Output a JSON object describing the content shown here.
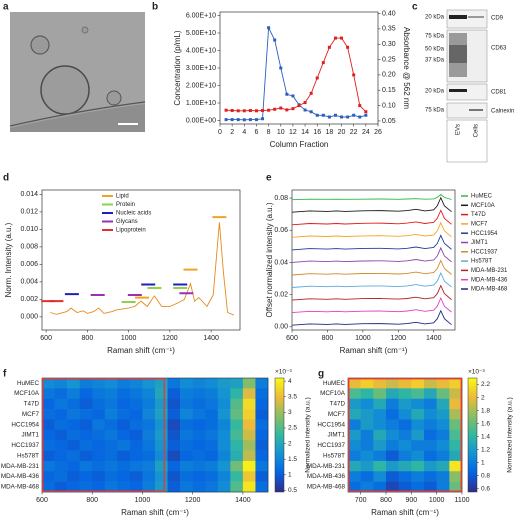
{
  "panel_labels": [
    "a",
    "b",
    "c",
    "d",
    "e",
    "f",
    "g"
  ],
  "blot": {
    "rows": [
      {
        "name": "CD9",
        "markers": [
          "20 kDa"
        ]
      },
      {
        "name": "CD63",
        "markers": [
          "75 kDa",
          "50 kDa",
          "37 kDa"
        ]
      },
      {
        "name": "CD81",
        "markers": [
          "20 kDa"
        ]
      },
      {
        "name": "Calnexin",
        "markers": [
          "75 kDa"
        ]
      }
    ],
    "lanes": [
      "EVs",
      "Cells"
    ]
  },
  "chart_data": [
    {
      "type": "line",
      "xlabel": "Column Fraction",
      "ylabel": "Concentration (p/mL)",
      "y2label": "Absorbance @ 562 nm",
      "markers": true,
      "x": [
        1,
        2,
        3,
        4,
        5,
        6,
        7,
        8,
        9,
        10,
        11,
        12,
        13,
        14,
        15,
        16,
        17,
        18,
        19,
        20,
        21,
        22,
        23,
        24
      ],
      "xlim": [
        0,
        26
      ],
      "xticks": [
        0,
        2,
        4,
        6,
        8,
        10,
        12,
        14,
        16,
        18,
        20,
        22,
        24,
        26
      ],
      "ylim": [
        -2000000000,
        62000000000
      ],
      "yticks": [
        {
          "value": 0,
          "label": "0.00E+00"
        },
        {
          "value": 10000000000,
          "label": "1.00E+10"
        },
        {
          "value": 20000000000,
          "label": "2.00E+10"
        },
        {
          "value": 30000000000,
          "label": "3.00E+10"
        },
        {
          "value": 40000000000,
          "label": "4.00E+10"
        },
        {
          "value": 50000000000,
          "label": "5.00E+10"
        },
        {
          "value": 60000000000,
          "label": "6.00E+10"
        }
      ],
      "y2lim": [
        0.04,
        0.405
      ],
      "y2ticks": [
        0.05,
        {
          "value": 0.1,
          "label": "0.10"
        },
        0.15,
        {
          "value": 0.2,
          "label": "0.20"
        },
        0.25,
        {
          "value": 0.3,
          "label": "0.30"
        },
        0.35,
        {
          "value": 0.4,
          "label": "0.40"
        }
      ],
      "series": [
        {
          "color": "#2d5fbf",
          "values": [
            500000000,
            500000000,
            500000000,
            400000000,
            500000000,
            500000000,
            1000000000,
            53000000000,
            46000000000,
            30000000000,
            15000000000,
            14000000000,
            9000000000,
            6000000000,
            5000000000,
            3000000000,
            3000000000,
            2000000000,
            3000000000,
            2000000000,
            2000000000,
            3000000000,
            2000000000,
            3000000000
          ]
        },
        {
          "color": "#e02020",
          "axis": "y2",
          "values": [
            0.085,
            0.084,
            0.083,
            0.083,
            0.084,
            0.083,
            0.084,
            0.085,
            0.088,
            0.092,
            0.086,
            0.09,
            0.1,
            0.11,
            0.14,
            0.19,
            0.24,
            0.29,
            0.32,
            0.32,
            0.29,
            0.2,
            0.1,
            0.08
          ]
        }
      ]
    },
    {
      "type": "line",
      "xlabel": "Raman shift (cm⁻¹)",
      "ylabel": "Norm. Intensity (a.u.)",
      "legend": "upper-left",
      "x": [
        620,
        650,
        700,
        720,
        750,
        780,
        800,
        830,
        855,
        880,
        920,
        940,
        1000,
        1030,
        1060,
        1090,
        1125,
        1160,
        1200,
        1240,
        1270,
        1300,
        1320,
        1340,
        1380,
        1410,
        1440,
        1460,
        1480,
        1510
      ],
      "xlim": [
        580,
        1540
      ],
      "xticks": [
        600,
        800,
        1000,
        1200,
        1400
      ],
      "ylim": [
        -0.0015,
        0.0145
      ],
      "yticks": [
        {
          "value": 0,
          "label": "0.000"
        },
        0.002,
        0.004,
        0.006,
        0.008,
        {
          "value": 0.01,
          "label": "0.010"
        },
        0.012,
        0.014
      ],
      "series": [
        {
          "color": "#e8891e",
          "values": [
            0.0005,
            0.0003,
            0.0006,
            0.001,
            0.0005,
            0.0007,
            0.0004,
            0.0006,
            0.001,
            0.0004,
            0.0006,
            0.0008,
            0.001,
            0.0012,
            0.0018,
            0.0012,
            0.0024,
            0.0012,
            0.0012,
            0.0016,
            0.002,
            0.0038,
            0.0018,
            0.0022,
            0.0012,
            0.0025,
            0.0108,
            0.005,
            0.0005,
            0.0002
          ]
        }
      ],
      "assignments": [
        {
          "name": "Lipid",
          "color": "#f2a324",
          "x": [
            1065,
            1300,
            1440
          ],
          "values": [
            0.0022,
            0.0054,
            0.0114
          ]
        },
        {
          "name": "Protein",
          "color": "#8fd14f",
          "x": [
            1000,
            1125,
            1250
          ],
          "values": [
            0.0017,
            0.0033,
            0.0033
          ]
        },
        {
          "name": "Nucleic acids",
          "color": "#1f1fbf",
          "x": [
            725,
            1095,
            1250
          ],
          "values": [
            0.0026,
            0.0037,
            0.0037
          ]
        },
        {
          "name": "Glycans",
          "color": "#9b30b0",
          "x": [
            850,
            1030,
            1280
          ],
          "values": [
            0.0025,
            0.0025,
            0.0027
          ]
        },
        {
          "name": "Lipoprotein",
          "color": "#e03030",
          "x": [
            610,
            650
          ],
          "values": [
            0.0018,
            0.0018
          ]
        }
      ]
    },
    {
      "type": "line",
      "xlabel": "Raman shift (cm⁻¹)",
      "ylabel": "Offset normalized intensity (a.u.)",
      "legend": "right",
      "x": [
        600,
        700,
        800,
        850,
        900,
        1000,
        1100,
        1200,
        1250,
        1300,
        1350,
        1400,
        1420,
        1440,
        1460,
        1500
      ],
      "xlim": [
        600,
        1520
      ],
      "xticks": [
        600,
        800,
        1000,
        1200,
        1400
      ],
      "ylim": [
        -0.002,
        0.085
      ],
      "yticks": [
        {
          "value": 0,
          "label": "0.00"
        },
        0.02,
        0.04,
        0.06,
        0.08
      ],
      "series": [
        {
          "name": "HuMEC",
          "color": "#2db84a",
          "values": [
            0.079,
            0.0793,
            0.0792,
            0.0793,
            0.0792,
            0.0793,
            0.0794,
            0.0792,
            0.0794,
            0.0796,
            0.0793,
            0.0795,
            0.0804,
            0.0822,
            0.0804,
            0.0791
          ]
        },
        {
          "name": "MCF10A",
          "color": "#1a1a1a",
          "values": [
            0.0712,
            0.072,
            0.0717,
            0.072,
            0.0717,
            0.0721,
            0.0722,
            0.0718,
            0.0722,
            0.073,
            0.072,
            0.0727,
            0.0752,
            0.0802,
            0.0752,
            0.0715
          ]
        },
        {
          "name": "T47D",
          "color": "#e31a1c",
          "values": [
            0.0634,
            0.0642,
            0.0639,
            0.0642,
            0.0639,
            0.0643,
            0.0644,
            0.064,
            0.0644,
            0.0652,
            0.0642,
            0.0649,
            0.0674,
            0.0724,
            0.0674,
            0.0637
          ]
        },
        {
          "name": "MCF7",
          "color": "#f5a623",
          "values": [
            0.0556,
            0.0564,
            0.0561,
            0.0564,
            0.0561,
            0.0565,
            0.0566,
            0.0562,
            0.0566,
            0.0574,
            0.0564,
            0.0571,
            0.0596,
            0.0646,
            0.0596,
            0.0559
          ]
        },
        {
          "name": "HCC1954",
          "color": "#1f3d99",
          "values": [
            0.0478,
            0.0486,
            0.0483,
            0.0486,
            0.0483,
            0.0487,
            0.0488,
            0.0484,
            0.0488,
            0.0496,
            0.0486,
            0.0493,
            0.0518,
            0.0568,
            0.0518,
            0.0481
          ]
        },
        {
          "name": "JIMT1",
          "color": "#8e44ad",
          "values": [
            0.04,
            0.0408,
            0.0405,
            0.0408,
            0.0405,
            0.0409,
            0.041,
            0.0406,
            0.041,
            0.0418,
            0.0408,
            0.0415,
            0.044,
            0.049,
            0.044,
            0.0403
          ]
        },
        {
          "name": "HCC1937",
          "color": "#d08a2a",
          "values": [
            0.0322,
            0.033,
            0.0327,
            0.033,
            0.0327,
            0.0331,
            0.0332,
            0.0328,
            0.0332,
            0.034,
            0.033,
            0.0337,
            0.0362,
            0.0412,
            0.0362,
            0.0325
          ]
        },
        {
          "name": "Hs578T",
          "color": "#5fa8d8",
          "values": [
            0.0244,
            0.0252,
            0.0249,
            0.0252,
            0.0249,
            0.0253,
            0.0254,
            0.025,
            0.0254,
            0.0262,
            0.0252,
            0.0259,
            0.0284,
            0.0334,
            0.0284,
            0.0247
          ]
        },
        {
          "name": "MDA-MB-231",
          "color": "#b22222",
          "values": [
            0.0166,
            0.0174,
            0.0171,
            0.0174,
            0.0171,
            0.0175,
            0.0176,
            0.0172,
            0.0176,
            0.0184,
            0.0174,
            0.0181,
            0.0206,
            0.0256,
            0.0206,
            0.0169
          ]
        },
        {
          "name": "MDA-MB-436",
          "color": "#e040c0",
          "values": [
            0.0088,
            0.0096,
            0.0093,
            0.0096,
            0.0093,
            0.0097,
            0.0098,
            0.0094,
            0.0098,
            0.0106,
            0.0096,
            0.0103,
            0.0128,
            0.0178,
            0.0128,
            0.0091
          ]
        },
        {
          "name": "MDA-MB-468",
          "color": "#1a2a80",
          "values": [
            0.001,
            0.0018,
            0.0015,
            0.0018,
            0.0015,
            0.0019,
            0.002,
            0.0016,
            0.002,
            0.0028,
            0.0018,
            0.0025,
            0.005,
            0.01,
            0.005,
            0.0013
          ]
        }
      ]
    },
    {
      "type": "heatmap",
      "xlabel": "Raman shift (cm⁻¹)",
      "colorbar_label": "Normalized intensity (a.u.)",
      "colorbar_unit": "×10⁻³",
      "colormap": "parula",
      "categories": [
        "HuMEC",
        "MCF10A",
        "T47D",
        "MCF7",
        "HCC1954",
        "JIMT1",
        "HCC1937",
        "Hs578T",
        "MDA-MB-231",
        "MDA-MB-436",
        "MDA-MB-468"
      ],
      "x": [
        625,
        675,
        725,
        775,
        825,
        875,
        925,
        975,
        1025,
        1075,
        1125,
        1175,
        1225,
        1275,
        1325,
        1375,
        1425,
        1475
      ],
      "xlim": [
        600,
        1500
      ],
      "xticks": [
        600,
        800,
        1000,
        1200,
        1400
      ],
      "clim": [
        0.45,
        4.1
      ],
      "cticks": [
        0.5,
        1,
        1.5,
        2,
        2.5,
        3,
        3.5,
        4
      ],
      "highlight": {
        "xlim": [
          600,
          1090
        ],
        "color": "#e53935"
      },
      "values": [
        [
          1.6,
          1.5,
          1.7,
          1.4,
          1.5,
          1.6,
          1.4,
          1.5,
          1.7,
          1.9,
          1.3,
          1.6,
          1.5,
          1.6,
          1.8,
          1.9,
          2.8,
          1.4
        ],
        [
          1.3,
          1.2,
          1.4,
          1.1,
          1.3,
          1.4,
          1.2,
          1.3,
          1.5,
          2.0,
          1.0,
          1.4,
          1.3,
          1.4,
          1.7,
          2.2,
          3.4,
          1.2
        ],
        [
          1.1,
          1.3,
          1.2,
          1.0,
          1.2,
          1.3,
          1.1,
          1.2,
          1.4,
          1.8,
          0.9,
          1.3,
          1.2,
          1.3,
          1.6,
          2.5,
          3.8,
          1.1
        ],
        [
          1.2,
          1.1,
          1.3,
          1.2,
          1.1,
          1.4,
          1.2,
          1.1,
          1.5,
          1.9,
          1.0,
          1.5,
          1.3,
          1.2,
          1.7,
          2.6,
          3.7,
          1.0
        ],
        [
          1.0,
          1.2,
          1.1,
          1.0,
          1.3,
          1.2,
          1.0,
          1.2,
          1.3,
          1.7,
          0.8,
          1.2,
          1.1,
          1.2,
          1.5,
          2.3,
          3.5,
          1.2
        ],
        [
          1.1,
          1.0,
          1.2,
          1.1,
          1.2,
          1.3,
          1.1,
          1.0,
          1.4,
          1.8,
          0.9,
          1.3,
          1.2,
          1.3,
          1.6,
          2.4,
          3.3,
          1.1
        ],
        [
          1.2,
          1.1,
          1.0,
          1.2,
          1.1,
          1.2,
          1.3,
          1.1,
          1.3,
          1.7,
          1.0,
          1.2,
          1.1,
          1.2,
          1.6,
          2.2,
          3.0,
          1.0
        ],
        [
          1.0,
          1.1,
          1.2,
          1.0,
          1.1,
          1.2,
          1.0,
          1.1,
          1.2,
          1.6,
          0.8,
          1.1,
          1.2,
          1.1,
          1.5,
          2.1,
          3.2,
          1.1
        ],
        [
          1.3,
          1.2,
          1.1,
          1.3,
          1.2,
          1.3,
          1.2,
          1.3,
          1.4,
          1.9,
          1.1,
          1.4,
          1.3,
          1.4,
          1.7,
          2.7,
          4.0,
          1.3
        ],
        [
          1.1,
          1.2,
          1.0,
          1.1,
          1.0,
          1.2,
          1.1,
          1.0,
          1.3,
          1.7,
          0.9,
          1.2,
          1.1,
          1.2,
          1.5,
          2.3,
          3.6,
          1.0
        ],
        [
          1.2,
          1.0,
          1.1,
          1.2,
          1.1,
          1.3,
          1.2,
          1.1,
          1.4,
          1.8,
          1.0,
          1.3,
          1.2,
          1.3,
          1.6,
          2.5,
          3.9,
          1.2
        ]
      ]
    },
    {
      "type": "heatmap",
      "xlabel": "Raman shift (cm⁻¹)",
      "colorbar_label": "Normalized intensity (a.u.)",
      "colorbar_unit": "×10⁻³",
      "colormap": "parula",
      "categories": [
        "HuMEC",
        "MCF10A",
        "T47D",
        "MCF7",
        "HCC1954",
        "JIMT1",
        "HCC1937",
        "Hs578T",
        "MDA-MB-231",
        "MDA-MB-436",
        "MDA-MB-468"
      ],
      "x": [
        675,
        725,
        775,
        825,
        875,
        925,
        975,
        1025,
        1075
      ],
      "xlim": [
        650,
        1100
      ],
      "xticks": [
        700,
        800,
        900,
        1000,
        1100
      ],
      "clim": [
        0.55,
        2.3
      ],
      "cticks": [
        0.6,
        0.8,
        1,
        1.2,
        1.4,
        1.6,
        1.8,
        2,
        2.2
      ],
      "highlight": {
        "xlim": [
          650,
          1100
        ],
        "color": "#e53935"
      },
      "values": [
        [
          2.0,
          2.1,
          2.0,
          1.9,
          2.0,
          2.1,
          1.9,
          2.0,
          2.1
        ],
        [
          1.5,
          1.4,
          1.6,
          1.3,
          1.4,
          1.5,
          1.3,
          1.6,
          1.9
        ],
        [
          1.2,
          1.1,
          1.3,
          1.0,
          1.2,
          1.1,
          1.0,
          1.3,
          2.0
        ],
        [
          1.3,
          1.2,
          1.1,
          0.9,
          1.1,
          1.3,
          1.1,
          1.2,
          1.8
        ],
        [
          1.0,
          1.2,
          1.1,
          1.0,
          0.9,
          1.1,
          1.0,
          1.1,
          1.6
        ],
        [
          1.2,
          1.0,
          1.3,
          1.1,
          1.0,
          1.2,
          0.9,
          1.0,
          1.5
        ],
        [
          1.1,
          1.0,
          1.2,
          1.0,
          1.1,
          1.0,
          1.0,
          1.1,
          1.4
        ],
        [
          1.0,
          1.1,
          1.0,
          0.8,
          1.0,
          1.1,
          0.9,
          1.0,
          1.3
        ],
        [
          1.3,
          1.2,
          1.4,
          1.2,
          1.3,
          1.4,
          1.2,
          1.3,
          2.2
        ],
        [
          1.0,
          0.9,
          1.1,
          0.8,
          0.9,
          1.0,
          0.9,
          1.0,
          1.7
        ],
        [
          0.9,
          1.0,
          0.9,
          0.7,
          0.8,
          0.9,
          0.8,
          1.0,
          1.6
        ]
      ]
    }
  ]
}
